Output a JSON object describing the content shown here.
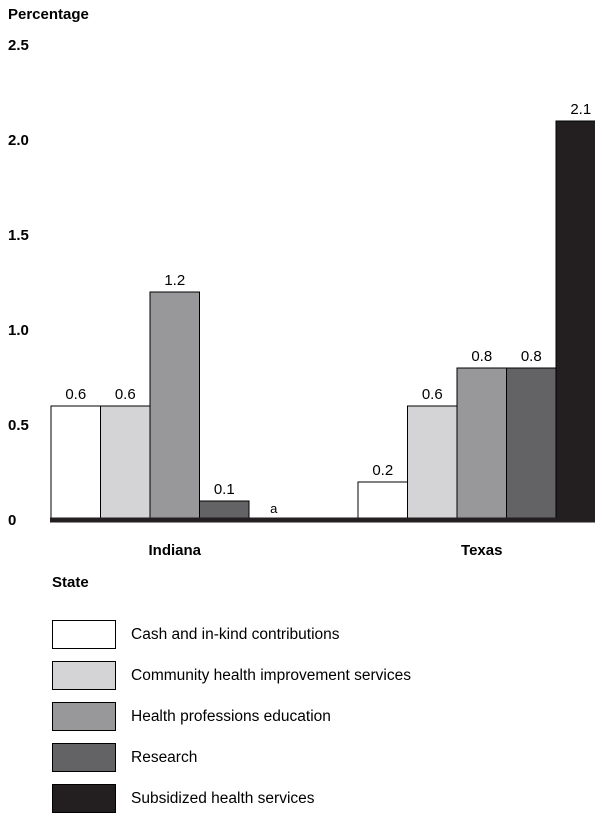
{
  "chart_data": {
    "type": "bar",
    "ylabel": "Percentage",
    "xlabel": "State",
    "ylim": [
      0,
      2.5
    ],
    "yticks": [
      {
        "value": 0,
        "label": "0"
      },
      {
        "value": 0.5,
        "label": "0.5"
      },
      {
        "value": 1.0,
        "label": "1.0"
      },
      {
        "value": 1.5,
        "label": "1.5"
      },
      {
        "value": 2.0,
        "label": "2.0"
      },
      {
        "value": 2.5,
        "label": "2.5"
      }
    ],
    "categories": [
      "Indiana",
      "Texas"
    ],
    "series": [
      {
        "name": "Cash and in-kind contributions",
        "color": "#ffffff",
        "values": [
          0.6,
          0.2
        ],
        "labels": [
          "0.6",
          "0.2"
        ]
      },
      {
        "name": "Community health improvement services",
        "color": "#d4d4d6",
        "values": [
          0.6,
          0.6
        ],
        "labels": [
          "0.6",
          "0.6"
        ]
      },
      {
        "name": "Health professions education",
        "color": "#98989b",
        "values": [
          1.2,
          0.8
        ],
        "labels": [
          "1.2",
          "0.8"
        ]
      },
      {
        "name": "Research",
        "color": "#636366",
        "values": [
          0.1,
          0.8
        ],
        "labels": [
          "0.1",
          "0.8"
        ]
      },
      {
        "name": "Subsidized health services",
        "color": "#231f20",
        "values": [
          0,
          2.1
        ],
        "labels": [
          "a",
          "2.1"
        ]
      }
    ],
    "grid": false,
    "legend_position": "bottom-left"
  }
}
